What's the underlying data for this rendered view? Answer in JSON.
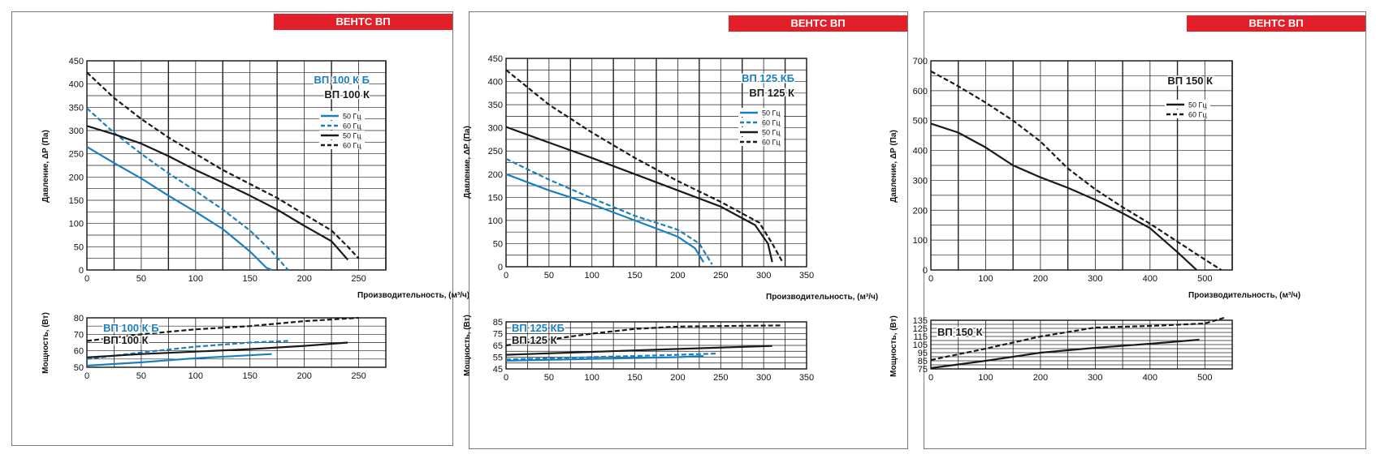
{
  "brand_banner": "ВЕНТС ВП",
  "colors": {
    "blue": "#1a7fbe",
    "black": "#1a1a1a",
    "banner": "#e3202a"
  },
  "chart_data": [
    {
      "type": "line",
      "title": "ВЕНТС ВП",
      "pressure": {
        "xlabel": "Производительность, (м³/ч)",
        "ylabel": "Давление, ΔP (Па)",
        "xlim": [
          0,
          275
        ],
        "ylim": [
          0,
          450
        ],
        "xticks": [
          0,
          50,
          100,
          150,
          200,
          250
        ],
        "yticks": [
          0,
          50,
          100,
          150,
          200,
          250,
          300,
          350,
          400,
          450
        ],
        "model_labels": [
          {
            "text": "ВП 100 К Б",
            "color": "blue"
          },
          {
            "text": "ВП 100 К",
            "color": "black"
          }
        ],
        "legend": [
          "50 Гц",
          "60 Гц",
          "50 Гц",
          "60 Гц"
        ],
        "series": [
          {
            "name": "50 Гц",
            "model": "ВП 100 К Б",
            "color": "blue",
            "dash": false,
            "points": [
              [
                0,
                265
              ],
              [
                25,
                230
              ],
              [
                50,
                197
              ],
              [
                75,
                160
              ],
              [
                100,
                125
              ],
              [
                125,
                88
              ],
              [
                150,
                40
              ],
              [
                165,
                5
              ],
              [
                170,
                0
              ]
            ]
          },
          {
            "name": "60 Гц",
            "model": "ВП 100 К Б",
            "color": "blue",
            "dash": true,
            "points": [
              [
                0,
                348
              ],
              [
                25,
                295
              ],
              [
                50,
                250
              ],
              [
                75,
                208
              ],
              [
                100,
                170
              ],
              [
                125,
                130
              ],
              [
                150,
                85
              ],
              [
                170,
                40
              ],
              [
                185,
                0
              ]
            ]
          },
          {
            "name": "50 Гц",
            "model": "ВП 100 К",
            "color": "black",
            "dash": false,
            "points": [
              [
                0,
                310
              ],
              [
                25,
                292
              ],
              [
                50,
                272
              ],
              [
                75,
                245
              ],
              [
                100,
                215
              ],
              [
                125,
                188
              ],
              [
                150,
                160
              ],
              [
                175,
                130
              ],
              [
                200,
                95
              ],
              [
                225,
                62
              ],
              [
                240,
                22
              ]
            ]
          },
          {
            "name": "60 Гц",
            "model": "ВП 100 К",
            "color": "black",
            "dash": true,
            "points": [
              [
                0,
                425
              ],
              [
                25,
                370
              ],
              [
                50,
                325
              ],
              [
                75,
                285
              ],
              [
                100,
                250
              ],
              [
                125,
                215
              ],
              [
                150,
                185
              ],
              [
                175,
                155
              ],
              [
                200,
                120
              ],
              [
                225,
                85
              ],
              [
                240,
                50
              ],
              [
                250,
                25
              ]
            ]
          }
        ]
      },
      "power": {
        "ylabel": "Мощность, (Вт)",
        "xlim": [
          0,
          275
        ],
        "ylim": [
          50,
          80
        ],
        "xticks": [
          0,
          50,
          100,
          150,
          200,
          250
        ],
        "yticks": [
          50,
          60,
          70,
          80
        ],
        "model_labels": [
          {
            "text": "ВП 100 К Б",
            "color": "blue"
          },
          {
            "text": "ВП 100 К",
            "color": "black"
          }
        ],
        "series": [
          {
            "color": "blue",
            "dash": false,
            "points": [
              [
                0,
                51
              ],
              [
                50,
                53
              ],
              [
                100,
                55.5
              ],
              [
                170,
                58
              ]
            ]
          },
          {
            "color": "blue",
            "dash": true,
            "points": [
              [
                0,
                55
              ],
              [
                50,
                59
              ],
              [
                100,
                62.5
              ],
              [
                150,
                65
              ],
              [
                185,
                66
              ]
            ]
          },
          {
            "color": "black",
            "dash": false,
            "points": [
              [
                0,
                56
              ],
              [
                50,
                58
              ],
              [
                100,
                59.5
              ],
              [
                150,
                61
              ],
              [
                200,
                63
              ],
              [
                240,
                65
              ]
            ]
          },
          {
            "color": "black",
            "dash": true,
            "points": [
              [
                0,
                66
              ],
              [
                50,
                70
              ],
              [
                100,
                73
              ],
              [
                150,
                75
              ],
              [
                200,
                78
              ],
              [
                250,
                80
              ]
            ]
          }
        ]
      }
    },
    {
      "type": "line",
      "title": "ВЕНТС ВП",
      "pressure": {
        "xlabel": "Производительность, (м³/ч)",
        "ylabel": "Давление, ΔP (Па)",
        "xlim": [
          0,
          350
        ],
        "ylim": [
          0,
          450
        ],
        "xticks": [
          0,
          50,
          100,
          150,
          200,
          250,
          300,
          350
        ],
        "yticks": [
          0,
          50,
          100,
          150,
          200,
          250,
          300,
          350,
          400,
          450
        ],
        "model_labels": [
          {
            "text": "ВП 125 КБ",
            "color": "blue"
          },
          {
            "text": "ВП 125 К",
            "color": "black"
          }
        ],
        "legend": [
          "50 Гц",
          "60 Гц",
          "50 Гц",
          "60 Гц"
        ],
        "series": [
          {
            "name": "50 Гц",
            "model": "ВП 125 КБ",
            "color": "blue",
            "dash": false,
            "points": [
              [
                0,
                200
              ],
              [
                50,
                165
              ],
              [
                100,
                135
              ],
              [
                150,
                100
              ],
              [
                200,
                65
              ],
              [
                220,
                40
              ],
              [
                230,
                10
              ]
            ]
          },
          {
            "name": "60 Гц",
            "model": "ВП 125 КБ",
            "color": "blue",
            "dash": true,
            "points": [
              [
                0,
                233
              ],
              [
                50,
                188
              ],
              [
                100,
                148
              ],
              [
                150,
                110
              ],
              [
                200,
                80
              ],
              [
                225,
                50
              ],
              [
                240,
                5
              ]
            ]
          },
          {
            "name": "50 Гц",
            "model": "ВП 125 К",
            "color": "black",
            "dash": false,
            "points": [
              [
                0,
                302
              ],
              [
                50,
                268
              ],
              [
                100,
                235
              ],
              [
                150,
                200
              ],
              [
                200,
                165
              ],
              [
                250,
                130
              ],
              [
                290,
                90
              ],
              [
                305,
                50
              ],
              [
                310,
                10
              ]
            ]
          },
          {
            "name": "60 Гц",
            "model": "ВП 125 К",
            "color": "black",
            "dash": true,
            "points": [
              [
                0,
                425
              ],
              [
                50,
                350
              ],
              [
                100,
                290
              ],
              [
                150,
                235
              ],
              [
                200,
                185
              ],
              [
                250,
                140
              ],
              [
                295,
                95
              ],
              [
                310,
                50
              ],
              [
                322,
                10
              ]
            ]
          }
        ]
      },
      "power": {
        "ylabel": "Мощность, (Вт)",
        "xlim": [
          0,
          350
        ],
        "ylim": [
          45,
          85
        ],
        "xticks": [
          0,
          50,
          100,
          150,
          200,
          250,
          300,
          350
        ],
        "yticks": [
          45,
          55,
          65,
          75,
          85
        ],
        "model_labels": [
          {
            "text": "ВП 125 КБ",
            "color": "blue"
          },
          {
            "text": "ВП 125 К",
            "color": "black"
          }
        ],
        "series": [
          {
            "color": "blue",
            "dash": false,
            "points": [
              [
                0,
                52
              ],
              [
                100,
                53.5
              ],
              [
                200,
                55
              ],
              [
                230,
                56
              ]
            ]
          },
          {
            "color": "blue",
            "dash": true,
            "points": [
              [
                0,
                53
              ],
              [
                100,
                55
              ],
              [
                200,
                57
              ],
              [
                245,
                58
              ]
            ]
          },
          {
            "color": "black",
            "dash": false,
            "points": [
              [
                0,
                57
              ],
              [
                100,
                59.5
              ],
              [
                200,
                62
              ],
              [
                310,
                64.5
              ]
            ]
          },
          {
            "color": "black",
            "dash": true,
            "points": [
              [
                0,
                65
              ],
              [
                50,
                70
              ],
              [
                100,
                75
              ],
              [
                150,
                79
              ],
              [
                200,
                81
              ],
              [
                250,
                81.5
              ],
              [
                320,
                82
              ]
            ]
          }
        ]
      }
    },
    {
      "type": "line",
      "title": "ВЕНТС ВП",
      "pressure": {
        "xlabel": "Производительность, (м³/ч)",
        "ylabel": "Давление, ΔP (Па)",
        "xlim": [
          0,
          550
        ],
        "ylim": [
          0,
          700
        ],
        "xticks": [
          0,
          100,
          200,
          300,
          400,
          500
        ],
        "yticks": [
          0,
          100,
          200,
          300,
          400,
          500,
          600,
          700
        ],
        "model_labels": [
          {
            "text": "ВП 150 К",
            "color": "black"
          }
        ],
        "legend": [
          "50 Гц",
          "60 Гц"
        ],
        "series": [
          {
            "name": "50 Гц",
            "model": "ВП 150 К",
            "color": "black",
            "dash": false,
            "points": [
              [
                0,
                490
              ],
              [
                50,
                460
              ],
              [
                100,
                410
              ],
              [
                150,
                350
              ],
              [
                200,
                310
              ],
              [
                250,
                275
              ],
              [
                300,
                235
              ],
              [
                350,
                190
              ],
              [
                400,
                140
              ],
              [
                450,
                60
              ],
              [
                485,
                0
              ]
            ]
          },
          {
            "name": "60 Гц",
            "model": "ВП 150 К",
            "color": "black",
            "dash": true,
            "points": [
              [
                0,
                665
              ],
              [
                50,
                615
              ],
              [
                100,
                560
              ],
              [
                150,
                500
              ],
              [
                200,
                430
              ],
              [
                250,
                340
              ],
              [
                300,
                270
              ],
              [
                350,
                210
              ],
              [
                400,
                155
              ],
              [
                450,
                95
              ],
              [
                500,
                35
              ],
              [
                530,
                0
              ]
            ]
          }
        ]
      },
      "power": {
        "ylabel": "Мощность, (Вт)",
        "xlim": [
          0,
          550
        ],
        "ylim": [
          75,
          135
        ],
        "xticks": [
          0,
          100,
          200,
          300,
          400,
          500
        ],
        "yticks": [
          75,
          85,
          95,
          105,
          115,
          125,
          135
        ],
        "model_labels": [
          {
            "text": "ВП 150 К",
            "color": "black"
          }
        ],
        "series": [
          {
            "color": "black",
            "dash": false,
            "points": [
              [
                0,
                76
              ],
              [
                100,
                85
              ],
              [
                200,
                95
              ],
              [
                300,
                101
              ],
              [
                400,
                106
              ],
              [
                490,
                111
              ]
            ]
          },
          {
            "color": "black",
            "dash": true,
            "points": [
              [
                0,
                86
              ],
              [
                100,
                100
              ],
              [
                200,
                115
              ],
              [
                300,
                126
              ],
              [
                400,
                128
              ],
              [
                500,
                131
              ],
              [
                535,
                138
              ]
            ]
          }
        ]
      }
    }
  ]
}
